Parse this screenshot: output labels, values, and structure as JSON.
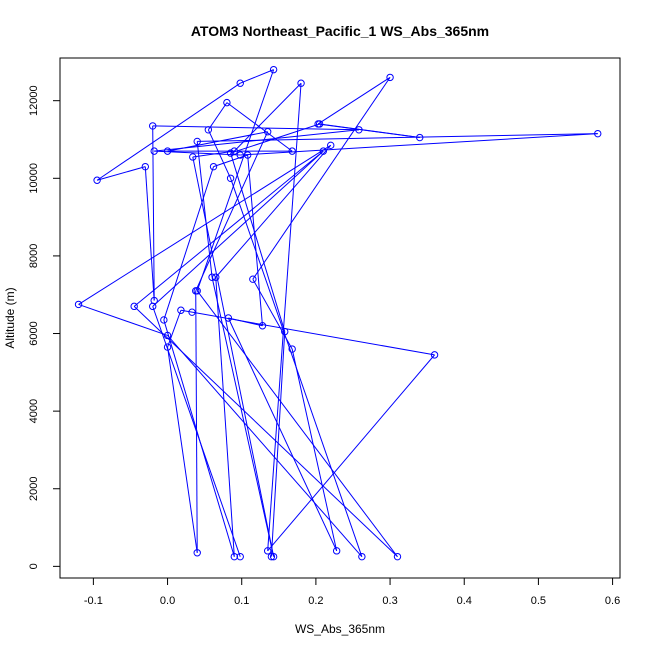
{
  "chart_data": {
    "type": "line",
    "title": "ATOM3 Northeast_Pacific_1 WS_Abs_365nm",
    "xlabel": "WS_Abs_365nm",
    "ylabel": "Altitude (m)",
    "xlim": [
      -0.145,
      0.61
    ],
    "ylim": [
      -300,
      13100
    ],
    "xticks": [
      -0.1,
      0.0,
      0.1,
      0.2,
      0.3,
      0.4,
      0.5,
      0.6
    ],
    "xtick_labels": [
      "-0.1",
      "0.0",
      "0.1",
      "0.2",
      "0.3",
      "0.4",
      "0.5",
      "0.6"
    ],
    "yticks": [
      0,
      2000,
      4000,
      6000,
      8000,
      10000,
      12000
    ],
    "ytick_labels": [
      "0",
      "2000",
      "4000",
      "6000",
      "8000",
      "10000",
      "12000"
    ],
    "grid": false,
    "series": [
      {
        "color": "#0000ff",
        "marker": "open-circle",
        "points": [
          [
            0.098,
            250
          ],
          [
            -0.02,
            6700
          ],
          [
            0.21,
            10700
          ],
          [
            -0.045,
            6700
          ],
          [
            0.31,
            250
          ],
          [
            0.04,
            7100
          ],
          [
            0.143,
            12800
          ],
          [
            0.098,
            12450
          ],
          [
            -0.095,
            9950
          ],
          [
            -0.03,
            10300
          ],
          [
            -0.018,
            6850
          ],
          [
            -0.02,
            11350
          ],
          [
            0.258,
            11250
          ],
          [
            -0.018,
            10700
          ],
          [
            0.098,
            10600
          ],
          [
            0.58,
            11150
          ],
          [
            0.04,
            10950
          ],
          [
            0.06,
            7450
          ],
          [
            0.143,
            250
          ],
          [
            0.034,
            10550
          ],
          [
            0.09,
            10700
          ],
          [
            0.18,
            12450
          ],
          [
            0.135,
            400
          ],
          [
            0.36,
            5450
          ],
          [
            0.033,
            6550
          ],
          [
            0.018,
            6600
          ],
          [
            0.0,
            5650
          ],
          [
            0.04,
            350
          ],
          [
            0.038,
            7100
          ],
          [
            0.135,
            11200
          ],
          [
            0.0,
            10700
          ],
          [
            0.168,
            10700
          ],
          [
            0.08,
            11950
          ],
          [
            0.055,
            11250
          ],
          [
            0.085,
            10000
          ],
          [
            0.262,
            250
          ],
          [
            0.0,
            5950
          ],
          [
            -0.12,
            6750
          ],
          [
            0.22,
            10850
          ],
          [
            0.065,
            7450
          ],
          [
            0.09,
            250
          ],
          [
            -0.005,
            6350
          ],
          [
            0.062,
            10300
          ],
          [
            0.108,
            10600
          ],
          [
            0.128,
            6200
          ],
          [
            0.082,
            6400
          ],
          [
            0.228,
            400
          ],
          [
            0.168,
            5600
          ],
          [
            0.115,
            7400
          ],
          [
            0.3,
            12600
          ],
          [
            0.203,
            11400
          ],
          [
            0.34,
            11050
          ],
          [
            0.205,
            11400
          ],
          [
            0.085,
            10650
          ],
          [
            0.158,
            6050
          ],
          [
            0.14,
            250
          ]
        ]
      }
    ]
  }
}
